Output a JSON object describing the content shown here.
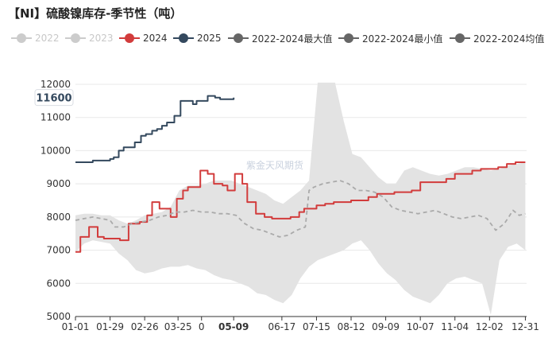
{
  "title": "【NI】硫酸镍库存-季节性（吨）",
  "watermark": "紫金天风期货",
  "legend": [
    {
      "label": "2022",
      "color": "#cccccc",
      "style": "dot-line",
      "active": false
    },
    {
      "label": "2023",
      "color": "#cccccc",
      "style": "dot-line",
      "active": false
    },
    {
      "label": "2024",
      "color": "#d23c3c",
      "style": "dot-line",
      "active": true
    },
    {
      "label": "2025",
      "color": "#34495e",
      "style": "dot-line",
      "active": true
    },
    {
      "label": "2022-2024最大值",
      "color": "#666666",
      "style": "dot-line",
      "active": true
    },
    {
      "label": "2022-2024最小值",
      "color": "#666666",
      "style": "dot-line",
      "active": true
    },
    {
      "label": "2022-2024均值",
      "color": "#666666",
      "style": "dot-line",
      "active": true
    }
  ],
  "chart_data": {
    "type": "line",
    "x_unit": "day-of-year",
    "xlim": [
      1,
      366
    ],
    "ylim": [
      5000,
      12000
    ],
    "yticks": [
      5000,
      6000,
      7000,
      8000,
      9000,
      10000,
      11000,
      12000
    ],
    "xticks": [
      {
        "x": 1,
        "label": "01-01"
      },
      {
        "x": 29,
        "label": "01-29"
      },
      {
        "x": 57,
        "label": "02-26"
      },
      {
        "x": 84,
        "label": "03-25"
      },
      {
        "x": 103,
        "label": "0"
      },
      {
        "x": 129,
        "label": "05-09",
        "highlight": true
      },
      {
        "x": 168,
        "label": "06-17"
      },
      {
        "x": 196,
        "label": "07-15"
      },
      {
        "x": 224,
        "label": "08-12"
      },
      {
        "x": 252,
        "label": "09-09"
      },
      {
        "x": 280,
        "label": "10-07"
      },
      {
        "x": 308,
        "label": "11-04"
      },
      {
        "x": 336,
        "label": "12-02"
      },
      {
        "x": 365,
        "label": "12-31"
      }
    ],
    "pointer_label": "11600",
    "pointer_value": 11600,
    "grid": "horizontal",
    "legend_position": "top",
    "series": [
      {
        "name": "2024",
        "color": "#d23c3c",
        "step": true,
        "x": [
          1,
          5,
          12,
          19,
          24,
          31,
          37,
          44,
          47,
          53,
          59,
          63,
          69,
          73,
          78,
          83,
          88,
          92,
          102,
          108,
          113,
          120,
          124,
          130,
          136,
          140,
          147,
          154,
          160,
          167,
          175,
          182,
          186,
          191,
          196,
          203,
          210,
          217,
          224,
          231,
          238,
          245,
          259,
          266,
          273,
          280,
          294,
          301,
          308,
          322,
          329,
          343,
          350,
          357,
          365
        ],
        "y": [
          6950,
          7400,
          7700,
          7400,
          7350,
          7350,
          7300,
          7800,
          7800,
          7850,
          8050,
          8450,
          8250,
          8250,
          8000,
          8550,
          8800,
          8900,
          9400,
          9300,
          9000,
          8950,
          8800,
          9300,
          9000,
          8450,
          8100,
          8000,
          7950,
          7950,
          8000,
          8150,
          8250,
          8250,
          8350,
          8400,
          8450,
          8450,
          8500,
          8500,
          8600,
          8700,
          8750,
          8750,
          8800,
          9050,
          9050,
          9150,
          9300,
          9400,
          9450,
          9500,
          9600,
          9650,
          9650
        ]
      },
      {
        "name": "2025",
        "color": "#34495e",
        "step": true,
        "x": [
          1,
          8,
          15,
          22,
          29,
          32,
          36,
          40,
          44,
          49,
          54,
          58,
          63,
          67,
          71,
          75,
          81,
          86,
          91,
          96,
          99,
          104,
          108,
          114,
          118,
          122,
          129
        ],
        "y": [
          9650,
          9650,
          9700,
          9700,
          9750,
          9800,
          10000,
          10100,
          10100,
          10250,
          10450,
          10500,
          10600,
          10650,
          10750,
          10850,
          11050,
          11500,
          11500,
          11400,
          11500,
          11500,
          11650,
          11600,
          11550,
          11550,
          11600
        ]
      },
      {
        "name": "2022-2024均值",
        "color": "#aaaaaa",
        "dashed": true,
        "x": [
          1,
          8,
          15,
          22,
          29,
          33,
          40,
          47,
          54,
          61,
          68,
          75,
          82,
          89,
          96,
          103,
          110,
          117,
          124,
          131,
          138,
          145,
          152,
          159,
          166,
          173,
          180,
          187,
          190,
          194,
          201,
          208,
          215,
          222,
          229,
          236,
          243,
          250,
          257,
          264,
          271,
          278,
          285,
          292,
          299,
          306,
          313,
          320,
          327,
          334,
          341,
          348,
          355,
          360,
          365
        ],
        "y": [
          7900,
          7950,
          8000,
          7950,
          7900,
          7700,
          7700,
          7800,
          7850,
          7900,
          8000,
          8050,
          8150,
          8150,
          8200,
          8150,
          8150,
          8100,
          8100,
          8050,
          7800,
          7650,
          7600,
          7500,
          7400,
          7450,
          7600,
          7700,
          8800,
          8900,
          9000,
          9050,
          9100,
          9000,
          8800,
          8800,
          8750,
          8600,
          8300,
          8200,
          8150,
          8100,
          8150,
          8200,
          8100,
          8000,
          7950,
          8000,
          8050,
          7950,
          7600,
          7800,
          8200,
          8050,
          8100
        ]
      }
    ],
    "range_band": {
      "name": "2022-2024最大值 / 2022-2024最小值",
      "color": "#e3e3e3",
      "x": [
        1,
        8,
        15,
        22,
        29,
        36,
        43,
        50,
        57,
        64,
        71,
        78,
        85,
        92,
        99,
        106,
        113,
        120,
        127,
        134,
        141,
        148,
        155,
        162,
        169,
        176,
        183,
        190,
        197,
        204,
        211,
        218,
        225,
        232,
        239,
        246,
        253,
        260,
        267,
        274,
        281,
        288,
        295,
        302,
        309,
        316,
        323,
        330,
        337,
        344,
        351,
        358,
        365
      ],
      "max": [
        8050,
        8100,
        8100,
        8050,
        8050,
        7900,
        7800,
        7900,
        8050,
        8100,
        8150,
        8300,
        8800,
        8950,
        8950,
        9000,
        9100,
        9100,
        9100,
        9000,
        8900,
        8800,
        8700,
        8500,
        8400,
        8600,
        8800,
        9100,
        12050,
        12050,
        12050,
        10900,
        9900,
        9800,
        9500,
        9200,
        9000,
        9000,
        9400,
        9500,
        9400,
        9300,
        9250,
        9300,
        9400,
        9500,
        9500,
        9450,
        9400,
        9450,
        9550,
        9600,
        9650
      ],
      "min": [
        6950,
        7200,
        7300,
        7250,
        7200,
        6900,
        6700,
        6400,
        6300,
        6350,
        6450,
        6500,
        6500,
        6550,
        6450,
        6400,
        6250,
        6150,
        6100,
        6000,
        5900,
        5700,
        5650,
        5500,
        5400,
        5650,
        6150,
        6500,
        6700,
        6800,
        6900,
        7000,
        7200,
        7300,
        7000,
        6600,
        6300,
        6100,
        5800,
        5600,
        5500,
        5400,
        5650,
        6000,
        6150,
        6200,
        6100,
        6000,
        5050,
        6700,
        7100,
        7200,
        7000
      ]
    }
  }
}
